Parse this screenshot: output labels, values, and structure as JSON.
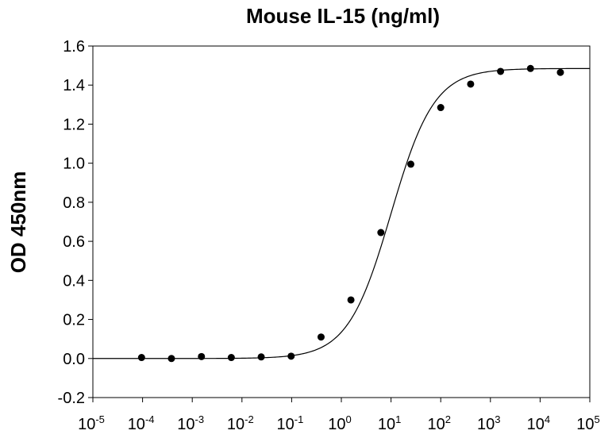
{
  "chart_data": {
    "type": "scatter",
    "title": "Mouse IL-15 (ng/ml)",
    "xlabel": "",
    "ylabel": "OD 450nm",
    "x_scale": "log",
    "xlim": [
      1e-05,
      100000
    ],
    "ylim": [
      -0.2,
      1.6
    ],
    "y_ticks": [
      "-0.2",
      "0.0",
      "0.2",
      "0.4",
      "0.6",
      "0.8",
      "1.0",
      "1.2",
      "1.4",
      "1.6"
    ],
    "x_tick_labels": [
      {
        "base": "10",
        "exp": "-5"
      },
      {
        "base": "10",
        "exp": "-4"
      },
      {
        "base": "10",
        "exp": "-3"
      },
      {
        "base": "10",
        "exp": "-2"
      },
      {
        "base": "10",
        "exp": "-1"
      },
      {
        "base": "10",
        "exp": "0"
      },
      {
        "base": "10",
        "exp": "1"
      },
      {
        "base": "10",
        "exp": "2"
      },
      {
        "base": "10",
        "exp": "3"
      },
      {
        "base": "10",
        "exp": "4"
      },
      {
        "base": "10",
        "exp": "5"
      }
    ],
    "grid": false,
    "series": [
      {
        "x": [
          9.54e-05,
          0.000381,
          0.00153,
          0.0061,
          0.0244,
          0.0977,
          0.391,
          1.56,
          6.25,
          25,
          100,
          400,
          1600,
          6400,
          25600
        ],
        "y": [
          0.005,
          0.0,
          0.01,
          0.005,
          0.008,
          0.012,
          0.11,
          0.3,
          0.645,
          0.995,
          1.285,
          1.405,
          1.47,
          1.485,
          1.465
        ],
        "marker": "circle",
        "color": "#000000"
      }
    ],
    "fit_curve": {
      "type": "4PL",
      "bottom": 0.0,
      "top": 1.485,
      "ec50": 10,
      "hill": 1.0,
      "color": "#000000"
    }
  }
}
